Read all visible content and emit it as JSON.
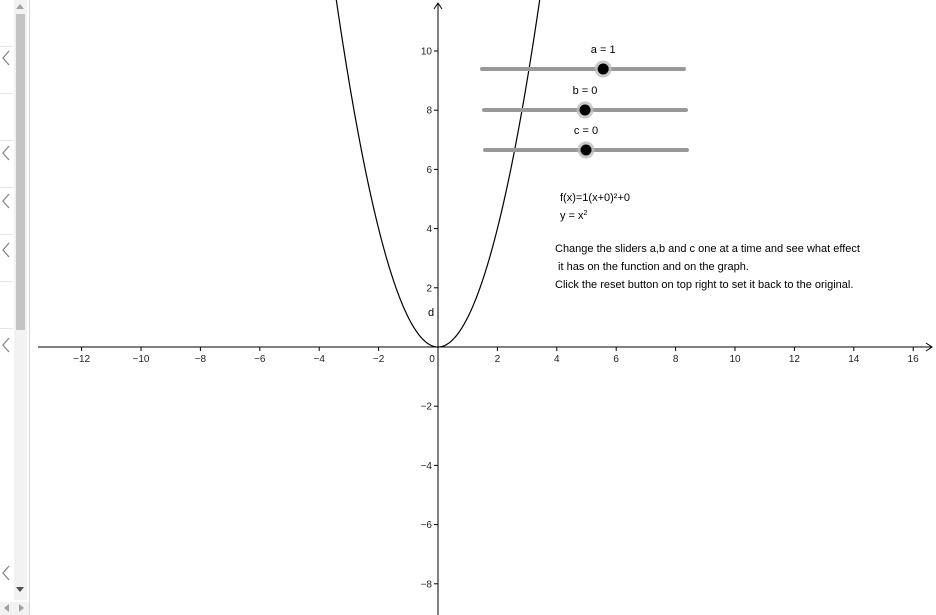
{
  "sliders": [
    {
      "id": "a",
      "label": "a = 1",
      "value": 1,
      "min": -5,
      "max": 5
    },
    {
      "id": "b",
      "label": "b = 0",
      "value": 0,
      "min": -5,
      "max": 5
    },
    {
      "id": "c",
      "label": "c = 0",
      "value": 0,
      "min": -5,
      "max": 5
    }
  ],
  "equations": {
    "f": "f(x)=1(x+0)²+0",
    "y_base": "y = x",
    "y_exp": "2"
  },
  "instructions": {
    "line1": "Change the sliders a,b and c one at a time and see what effect",
    "line2": " it has on the function and on the graph.",
    "line3": "Click the reset button on top right to set it back to the original."
  },
  "point_label": "d",
  "colors": {
    "slider_track": "#999999",
    "slider_knob": "#000000",
    "curve": "#000000",
    "axis": "#000000"
  },
  "chart_data": {
    "type": "line",
    "title": "",
    "xlabel": "",
    "ylabel": "",
    "xlim": [
      -13.3,
      16.6
    ],
    "ylim": [
      -8.9,
      11.7
    ],
    "x_ticks": [
      "−12",
      "−10",
      "−8",
      "−6",
      "−4",
      "−2",
      "0",
      "2",
      "4",
      "6",
      "8",
      "10",
      "12",
      "14",
      "16"
    ],
    "y_ticks": [
      "−8",
      "−6",
      "−4",
      "−2",
      "2",
      "4",
      "6",
      "8",
      "10"
    ],
    "grid": false,
    "series": [
      {
        "function": "y = 1(x+0)^2+0",
        "a": 1,
        "b": 0,
        "c": 0
      }
    ]
  }
}
